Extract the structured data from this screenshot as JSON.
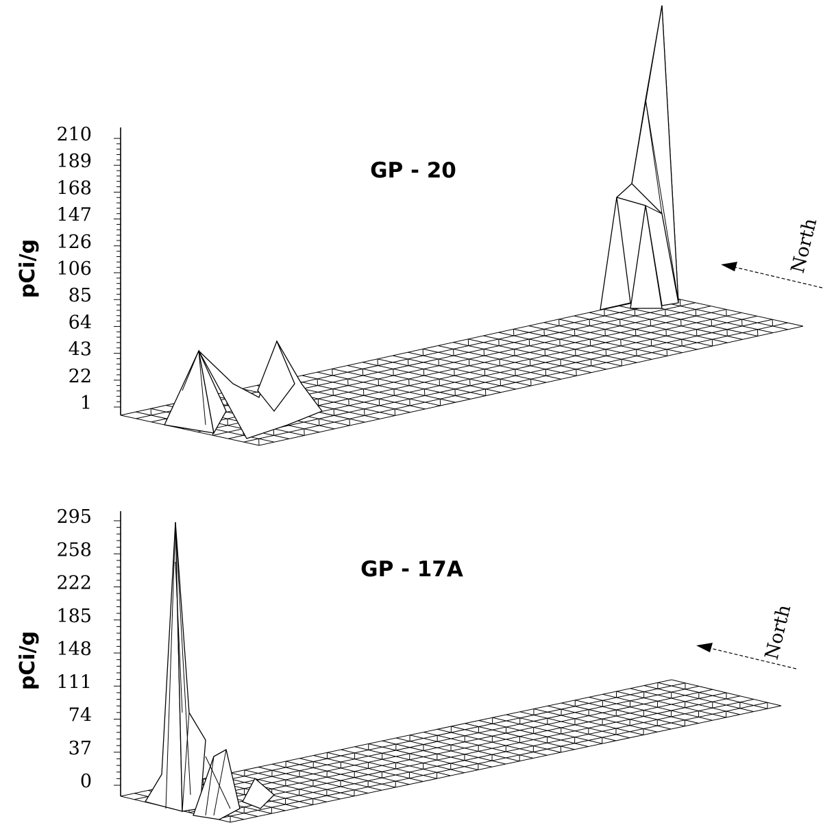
{
  "chart_data": [
    {
      "type": "surface3d",
      "title": "GP - 20",
      "ylabel": "pCi/g",
      "zlim": [
        1,
        210
      ],
      "ticks": [
        "210",
        "189",
        "168",
        "147",
        "126",
        "106",
        "85",
        "64",
        "43",
        "22",
        "1"
      ],
      "direction_label": "North",
      "peaks": [
        {
          "position": "left",
          "value": 43
        },
        {
          "position": "left-center",
          "value": 48
        },
        {
          "position": "right",
          "value": 160
        },
        {
          "position": "right",
          "value": 250
        },
        {
          "position": "right",
          "value": 155
        }
      ]
    },
    {
      "type": "surface3d",
      "title": "GP - 17A",
      "ylabel": "pCi/g",
      "zlim": [
        0,
        295
      ],
      "ticks": [
        "295",
        "258",
        "222",
        "185",
        "148",
        "111",
        "74",
        "37",
        "0"
      ],
      "direction_label": "North",
      "peaks": [
        {
          "position": "left",
          "value": 290
        },
        {
          "position": "left",
          "value": 40
        }
      ]
    }
  ]
}
